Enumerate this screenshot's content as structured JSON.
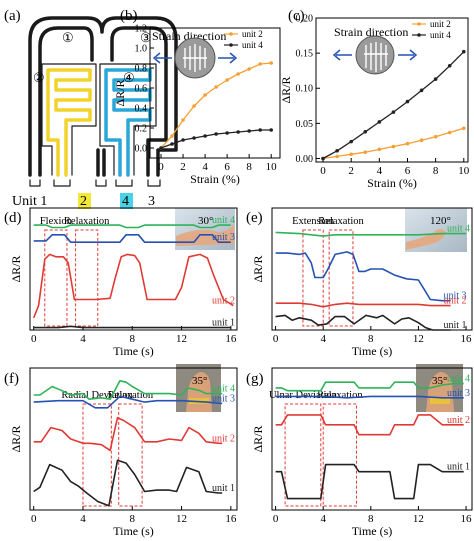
{
  "panels": {
    "a": {
      "label": "(a)",
      "unit_row": [
        "Unit 1",
        "2",
        "4",
        "3"
      ],
      "circle_labels": [
        "①",
        "②",
        "③",
        "④"
      ],
      "colors": {
        "u2": "#f2d32b",
        "u4": "#2aa6d8"
      }
    },
    "b": {
      "label": "(b)",
      "annotation": "Strain direction",
      "ylabel": "ΔR/R",
      "xlabel": "Strain (%)"
    },
    "c": {
      "label": "(c)",
      "annotation": "Strain direction",
      "ylabel": "ΔR/R",
      "xlabel": "Strain (%)"
    },
    "d": {
      "label": "(d)",
      "angle": "30°",
      "ylabel": "ΔR/R",
      "xlabel": "Time (s)",
      "boxes": [
        "Flexion",
        "Relaxation"
      ]
    },
    "e": {
      "label": "(e)",
      "angle": "120°",
      "ylabel": "ΔR/R",
      "xlabel": "Time (s)",
      "boxes": [
        "Extension",
        "Relaxation"
      ]
    },
    "f": {
      "label": "(f)",
      "angle": "35°",
      "ylabel": "ΔR/R",
      "xlabel": "Time (s)",
      "boxes": [
        "Radial Deviation",
        "Relaxation"
      ]
    },
    "g": {
      "label": "(g)",
      "angle": "35°",
      "ylabel": "ΔR/R",
      "xlabel": "Time (s)",
      "boxes": [
        "Ulnar Deviation",
        "Relaxation"
      ]
    }
  },
  "colors": {
    "unit1": "#222222",
    "unit2": "#e03a35",
    "unit3": "#2552b3",
    "unit4": "#2fb35a",
    "orange": "#f5a035",
    "black": "#222222",
    "box": "#e03a35"
  },
  "chart_data": [
    {
      "panel": "b",
      "type": "line",
      "xlabel": "Strain (%)",
      "ylabel": "ΔR/R",
      "xlim": [
        -1,
        10.8
      ],
      "ylim": [
        -0.1,
        1.2
      ],
      "xticks": [
        0,
        2,
        4,
        6,
        8,
        10
      ],
      "yticks": [
        0.0,
        0.2,
        0.4,
        0.6,
        0.8,
        1.0,
        1.2
      ],
      "legend_position": "top-right",
      "series": [
        {
          "name": "unit 2",
          "color": "orange",
          "x": [
            0,
            1,
            2,
            3,
            4,
            5,
            6,
            7,
            8,
            9,
            10
          ],
          "y": [
            0.0,
            0.12,
            0.28,
            0.42,
            0.53,
            0.61,
            0.68,
            0.74,
            0.79,
            0.84,
            0.85
          ]
        },
        {
          "name": "unit 4",
          "color": "black",
          "x": [
            0,
            1,
            2,
            3,
            4,
            5,
            6,
            7,
            8,
            9,
            10
          ],
          "y": [
            0.0,
            0.04,
            0.08,
            0.1,
            0.12,
            0.14,
            0.15,
            0.16,
            0.17,
            0.18,
            0.18
          ]
        }
      ]
    },
    {
      "panel": "c",
      "type": "line",
      "xlabel": "Strain (%)",
      "ylabel": "ΔR/R",
      "xlim": [
        -0.5,
        10.3
      ],
      "ylim": [
        -0.005,
        0.2
      ],
      "xticks": [
        0,
        2,
        4,
        6,
        8,
        10
      ],
      "yticks": [
        0.0,
        0.05,
        0.1,
        0.15,
        0.2
      ],
      "legend_position": "top-right",
      "series": [
        {
          "name": "unit 2",
          "color": "orange",
          "x": [
            0,
            1,
            2,
            3,
            4,
            5,
            6,
            7,
            8,
            9,
            10
          ],
          "y": [
            0.0,
            0.003,
            0.006,
            0.009,
            0.013,
            0.017,
            0.021,
            0.026,
            0.031,
            0.037,
            0.043
          ]
        },
        {
          "name": "unit 4",
          "color": "black",
          "x": [
            0,
            1,
            2,
            3,
            4,
            5,
            6,
            7,
            8,
            9,
            10
          ],
          "y": [
            0.0,
            0.011,
            0.024,
            0.038,
            0.052,
            0.066,
            0.081,
            0.097,
            0.113,
            0.132,
            0.152
          ]
        }
      ]
    },
    {
      "panel": "d",
      "type": "line",
      "xlabel": "Time (s)",
      "ylabel": "ΔR/R",
      "xlim": [
        -0.3,
        16.5
      ],
      "ylim": [
        0,
        1
      ],
      "xticks": [
        0,
        4,
        8,
        12,
        16
      ],
      "boxes": [
        {
          "label": "Flexion",
          "x0": 0.9,
          "x1": 2.7
        },
        {
          "label": "Relaxation",
          "x0": 3.4,
          "x1": 5.2
        }
      ],
      "series": [
        {
          "name": "unit 4",
          "color": "unit4",
          "x": [
            0,
            1,
            1.5,
            2.5,
            3,
            4,
            5,
            6,
            7,
            7.5,
            8.5,
            9,
            10,
            11,
            12,
            13,
            13.5,
            14.5,
            15,
            16
          ],
          "y": [
            0.86,
            0.86,
            0.84,
            0.84,
            0.86,
            0.86,
            0.86,
            0.86,
            0.86,
            0.84,
            0.84,
            0.86,
            0.86,
            0.86,
            0.86,
            0.86,
            0.84,
            0.84,
            0.86,
            0.86
          ]
        },
        {
          "name": "unit 3",
          "color": "unit3",
          "x": [
            0,
            1,
            1.5,
            2.5,
            3,
            4,
            5,
            6,
            7,
            7.5,
            8.5,
            9,
            10,
            11,
            12,
            13,
            13.5,
            14.5,
            15,
            16
          ],
          "y": [
            0.73,
            0.73,
            0.78,
            0.78,
            0.72,
            0.72,
            0.72,
            0.72,
            0.72,
            0.78,
            0.78,
            0.72,
            0.72,
            0.72,
            0.72,
            0.72,
            0.78,
            0.78,
            0.72,
            0.72
          ]
        },
        {
          "name": "unit 2",
          "color": "unit2",
          "x": [
            0,
            0.4,
            0.9,
            1.3,
            1.8,
            2.4,
            2.8,
            3.3,
            4.2,
            5.0,
            6.2,
            6.6,
            7.1,
            7.6,
            8.2,
            8.6,
            9.2,
            10.4,
            11.5,
            12.0,
            12.6,
            13.5,
            14.1,
            14.6,
            15.4,
            16.2
          ],
          "y": [
            0.1,
            0.2,
            0.58,
            0.62,
            0.6,
            0.6,
            0.55,
            0.25,
            0.25,
            0.25,
            0.26,
            0.42,
            0.6,
            0.62,
            0.61,
            0.55,
            0.25,
            0.25,
            0.25,
            0.35,
            0.6,
            0.62,
            0.59,
            0.45,
            0.25,
            0.2
          ]
        },
        {
          "name": "unit 1",
          "color": "unit1",
          "x": [
            0,
            2,
            3,
            4,
            6,
            8,
            10,
            12,
            14,
            16
          ],
          "y": [
            0.02,
            0.02,
            0.03,
            0.02,
            0.02,
            0.02,
            0.02,
            0.02,
            0.02,
            0.02
          ]
        }
      ]
    },
    {
      "panel": "e",
      "type": "line",
      "xlabel": "Time (s)",
      "ylabel": "ΔR/R",
      "xlim": [
        -0.3,
        16.5
      ],
      "ylim": [
        0,
        1
      ],
      "xticks": [
        0,
        4,
        8,
        12,
        16
      ],
      "boxes": [
        {
          "label": "Extension",
          "x0": 2.3,
          "x1": 4.0
        },
        {
          "label": "Relaxation",
          "x0": 4.5,
          "x1": 6.5
        }
      ],
      "series": [
        {
          "name": "unit 4",
          "color": "unit4",
          "x": [
            0,
            2,
            3,
            4,
            5,
            6,
            8,
            10,
            12,
            14,
            16
          ],
          "y": [
            0.8,
            0.79,
            0.78,
            0.77,
            0.78,
            0.78,
            0.78,
            0.78,
            0.78,
            0.79,
            0.79
          ]
        },
        {
          "name": "unit 3",
          "color": "unit3",
          "x": [
            0,
            1,
            2,
            2.5,
            3,
            3.3,
            4,
            4.4,
            5,
            6,
            6.5,
            7,
            7.5,
            8,
            9,
            10,
            11,
            12,
            12.5,
            13,
            14,
            14.7
          ],
          "y": [
            0.63,
            0.63,
            0.62,
            0.63,
            0.55,
            0.43,
            0.43,
            0.5,
            0.62,
            0.64,
            0.62,
            0.48,
            0.48,
            0.5,
            0.5,
            0.45,
            0.42,
            0.41,
            0.33,
            0.25,
            0.24,
            0.24
          ]
        },
        {
          "name": "unit 2",
          "color": "unit2",
          "x": [
            0,
            2,
            3,
            4,
            5,
            6,
            7,
            8,
            10,
            12,
            13,
            14.7
          ],
          "y": [
            0.22,
            0.22,
            0.21,
            0.19,
            0.21,
            0.22,
            0.21,
            0.21,
            0.21,
            0.21,
            0.2,
            0.2
          ]
        },
        {
          "name": "unit 1",
          "color": "unit1",
          "x": [
            0,
            0.8,
            1.4,
            2,
            3,
            3.6,
            4.3,
            5,
            5.8,
            6.6,
            7.6,
            8.5,
            9,
            10,
            10.6,
            11.2,
            12,
            12.6,
            13.2,
            14,
            14.7
          ],
          "y": [
            0.11,
            0.12,
            0.08,
            0.1,
            0.08,
            0.04,
            0.05,
            0.11,
            0.11,
            0.05,
            0.12,
            0.1,
            0.12,
            0.05,
            0.09,
            0.1,
            0.06,
            0.02,
            0.0,
            0.0,
            0.0
          ]
        }
      ]
    },
    {
      "panel": "f",
      "type": "line",
      "xlabel": "Time (s)",
      "ylabel": "ΔR/R",
      "xlim": [
        -0.3,
        16.5
      ],
      "ylim": [
        0,
        1
      ],
      "xticks": [
        0,
        4,
        8,
        12,
        16
      ],
      "boxes": [
        {
          "label": "Radial Deviation",
          "x0": 4.0,
          "x1": 6.3
        },
        {
          "label": "Relaxation",
          "x0": 6.9,
          "x1": 8.8
        }
      ],
      "series": [
        {
          "name": "unit 4",
          "color": "unit4",
          "x": [
            0,
            0.5,
            1.5,
            2.3,
            3,
            4,
            4.5,
            5.5,
            6.2,
            7,
            7.5,
            8,
            9,
            10,
            11,
            12,
            12.5,
            13.5,
            14,
            15,
            15.3
          ],
          "y": [
            0.81,
            0.81,
            0.87,
            0.84,
            0.81,
            0.82,
            0.78,
            0.79,
            0.78,
            0.91,
            0.9,
            0.87,
            0.82,
            0.82,
            0.82,
            0.81,
            0.86,
            0.84,
            0.82,
            0.82,
            0.82
          ]
        },
        {
          "name": "unit 3",
          "color": "unit3",
          "x": [
            0,
            2,
            4,
            5,
            6,
            7,
            8,
            9,
            10,
            12,
            14,
            15.3
          ],
          "y": [
            0.76,
            0.77,
            0.77,
            0.72,
            0.72,
            0.8,
            0.78,
            0.76,
            0.77,
            0.77,
            0.76,
            0.75
          ]
        },
        {
          "name": "unit 2",
          "color": "unit2",
          "x": [
            0,
            0.6,
            1.4,
            2.3,
            3,
            4,
            4.6,
            5.5,
            6.2,
            6.8,
            7.3,
            8.2,
            9,
            10,
            11,
            12,
            12.6,
            13.4,
            14,
            15,
            15.3
          ],
          "y": [
            0.48,
            0.48,
            0.58,
            0.56,
            0.5,
            0.47,
            0.47,
            0.46,
            0.42,
            0.65,
            0.63,
            0.58,
            0.48,
            0.48,
            0.5,
            0.49,
            0.58,
            0.54,
            0.48,
            0.47,
            0.47
          ]
        },
        {
          "name": "unit 1",
          "color": "unit1",
          "x": [
            0,
            0.5,
            1.3,
            2.3,
            3,
            3.6,
            4.3,
            5.2,
            6.1,
            6.8,
            7.5,
            8.2,
            9,
            10,
            11,
            11.6,
            12.4,
            13.4,
            14,
            15,
            15.3
          ],
          "y": [
            0.13,
            0.16,
            0.32,
            0.28,
            0.2,
            0.17,
            0.12,
            0.06,
            0.03,
            0.35,
            0.33,
            0.25,
            0.13,
            0.14,
            0.14,
            0.13,
            0.3,
            0.27,
            0.13,
            0.12,
            0.12
          ]
        }
      ]
    },
    {
      "panel": "g",
      "type": "line",
      "xlabel": "Time (s)",
      "ylabel": "ΔR/R",
      "xlim": [
        -0.3,
        16.5
      ],
      "ylim": [
        0,
        1
      ],
      "xticks": [
        0,
        4,
        8,
        12,
        16
      ],
      "boxes": [
        {
          "label": "Ulnar Deviation",
          "x0": 0.8,
          "x1": 3.8
        },
        {
          "label": "Relaxation",
          "x0": 4.0,
          "x1": 6.8
        }
      ],
      "series": [
        {
          "name": "unit 4",
          "color": "unit4",
          "x": [
            0,
            0.5,
            1,
            3.8,
            4.2,
            6.6,
            7,
            9.6,
            10,
            11.6,
            12,
            13,
            14,
            15,
            15.8
          ],
          "y": [
            0.86,
            0.86,
            0.84,
            0.84,
            0.9,
            0.9,
            0.86,
            0.86,
            0.9,
            0.9,
            0.86,
            0.86,
            0.88,
            0.89,
            0.89
          ]
        },
        {
          "name": "unit 3",
          "color": "unit3",
          "x": [
            0,
            2,
            4,
            6,
            8,
            10,
            12,
            14,
            15.8
          ],
          "y": [
            0.8,
            0.8,
            0.8,
            0.79,
            0.8,
            0.8,
            0.8,
            0.79,
            0.79
          ]
        },
        {
          "name": "unit 2",
          "color": "unit2",
          "x": [
            0,
            0.5,
            1,
            3.8,
            4.2,
            6.6,
            7,
            9.6,
            10,
            11.6,
            12,
            13,
            14,
            15,
            15.8
          ],
          "y": [
            0.6,
            0.6,
            0.67,
            0.67,
            0.6,
            0.6,
            0.53,
            0.53,
            0.6,
            0.6,
            0.67,
            0.67,
            0.6,
            0.6,
            0.6
          ]
        },
        {
          "name": "unit 1",
          "color": "unit1",
          "x": [
            0,
            0.5,
            1,
            3.8,
            4.2,
            6.6,
            7,
            9.6,
            10,
            11.6,
            12,
            13,
            14,
            15,
            15.8
          ],
          "y": [
            0.27,
            0.27,
            0.08,
            0.08,
            0.32,
            0.32,
            0.27,
            0.27,
            0.08,
            0.08,
            0.32,
            0.32,
            0.27,
            0.27,
            0.27
          ]
        }
      ]
    }
  ]
}
